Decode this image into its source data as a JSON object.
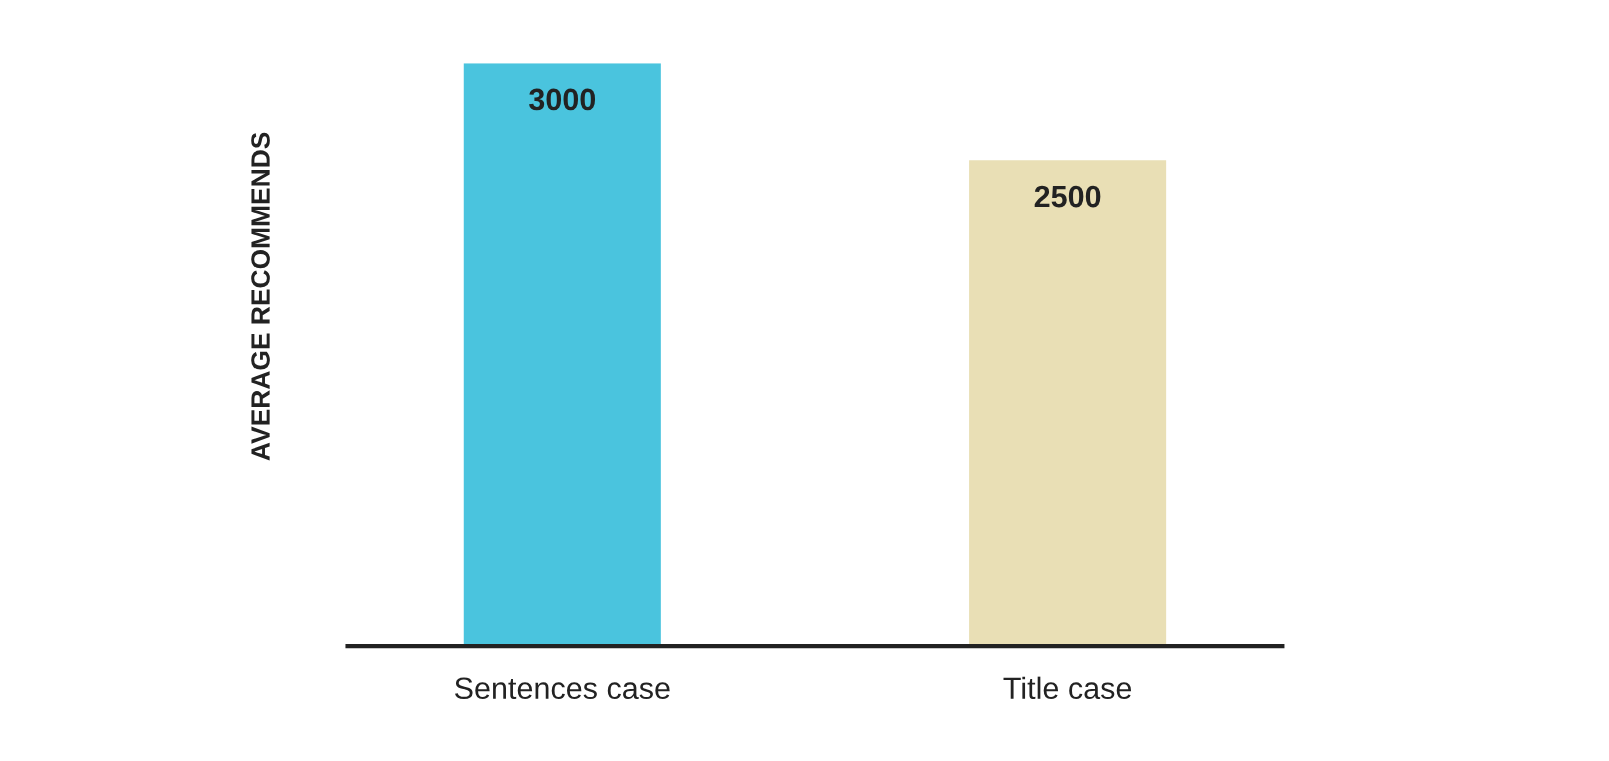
{
  "chart_data": {
    "type": "bar",
    "ylabel": "AVERAGE RECOMMENDS",
    "categories": [
      "Sentences case",
      "Title case"
    ],
    "values": [
      3000,
      2500
    ],
    "colors": [
      "#4ac4de",
      "#e9dfb5"
    ],
    "data_labels": true,
    "tick_labels": "x",
    "grid": false,
    "legend": false
  }
}
